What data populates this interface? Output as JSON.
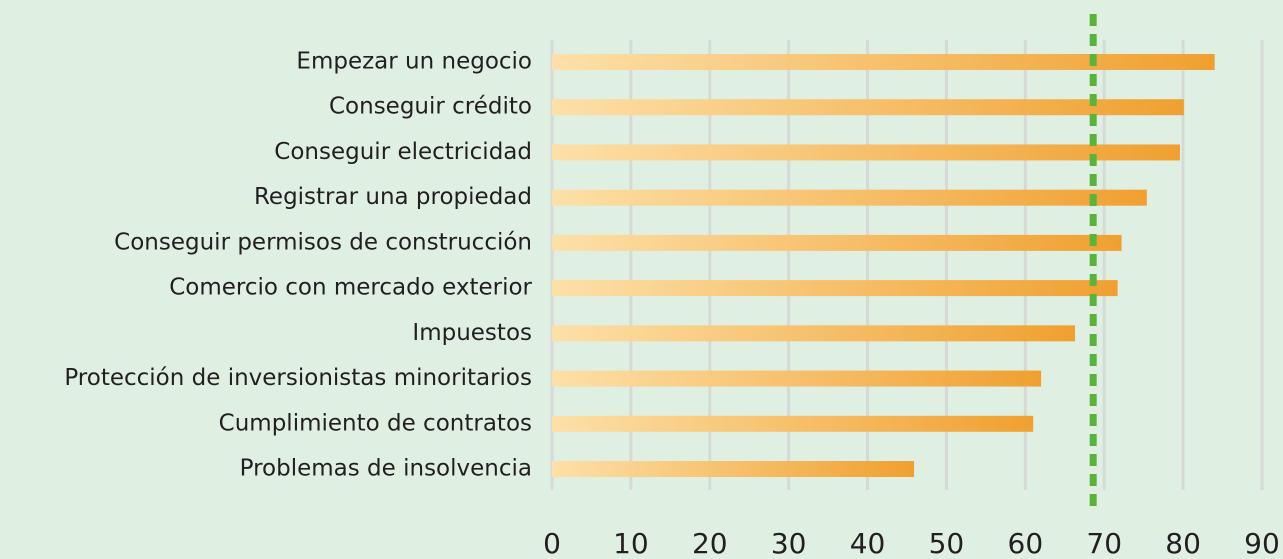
{
  "chart_data": {
    "type": "hbar",
    "categories": [
      "Empezar un negocio",
      "Conseguir crédito",
      "Conseguir electricidad",
      "Registrar una propiedad",
      "Conseguir permisos de construcción",
      "Comercio con mercado exterior",
      "Impuestos",
      "Protección de inversionistas minoritarios",
      "Cumplimiento de contratos",
      "Problemas de insolvencia"
    ],
    "values": [
      84.0,
      80.1,
      79.6,
      75.4,
      72.2,
      71.7,
      66.3,
      62.0,
      61.0,
      45.9
    ],
    "color": "#f0a030",
    "reference_line": 68.6,
    "reference_color": "#5ab33a",
    "xlim": [
      0,
      90
    ],
    "xticks": [
      0,
      10,
      20,
      30,
      40,
      50,
      60,
      70,
      80,
      90
    ],
    "grid": true
  }
}
